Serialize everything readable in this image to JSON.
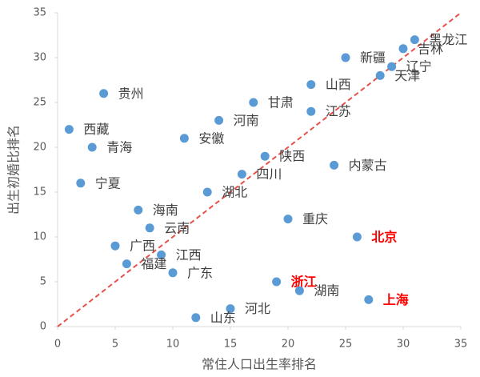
{
  "chart_data": {
    "type": "scatter",
    "x_label": "常住人口出生率排名",
    "y_label": "出生初婚比排名",
    "xlim": [
      0,
      35
    ],
    "ylim": [
      0,
      35
    ],
    "xticks": [
      0,
      5,
      10,
      15,
      20,
      25,
      30,
      35
    ],
    "yticks": [
      0,
      5,
      10,
      15,
      20,
      25,
      30,
      35
    ],
    "color": "#5b9bd5",
    "reference_line": {
      "color": "#e8504a",
      "style": "dashed"
    },
    "points": [
      {
        "name": "黑龙江",
        "x": 31,
        "y": 32,
        "label_color": "#404040"
      },
      {
        "name": "吉林",
        "x": 30,
        "y": 31,
        "label_color": "#404040"
      },
      {
        "name": "辽宁",
        "x": 29,
        "y": 29,
        "label_color": "#404040"
      },
      {
        "name": "天津",
        "x": 28,
        "y": 28,
        "label_color": "#404040"
      },
      {
        "name": "新疆",
        "x": 25,
        "y": 30,
        "label_color": "#404040"
      },
      {
        "name": "山西",
        "x": 22,
        "y": 27,
        "label_color": "#404040"
      },
      {
        "name": "江苏",
        "x": 22,
        "y": 24,
        "label_color": "#404040"
      },
      {
        "name": "甘肃",
        "x": 17,
        "y": 25,
        "label_color": "#404040"
      },
      {
        "name": "河南",
        "x": 14,
        "y": 23,
        "label_color": "#404040"
      },
      {
        "name": "贵州",
        "x": 4,
        "y": 26,
        "label_color": "#404040"
      },
      {
        "name": "西藏",
        "x": 1,
        "y": 22,
        "label_color": "#404040"
      },
      {
        "name": "青海",
        "x": 3,
        "y": 20,
        "label_color": "#404040"
      },
      {
        "name": "安徽",
        "x": 11,
        "y": 21,
        "label_color": "#404040"
      },
      {
        "name": "陕西",
        "x": 18,
        "y": 19,
        "label_color": "#404040"
      },
      {
        "name": "内蒙古",
        "x": 24,
        "y": 18,
        "label_color": "#404040"
      },
      {
        "name": "四川",
        "x": 16,
        "y": 17,
        "label_color": "#404040"
      },
      {
        "name": "宁夏",
        "x": 2,
        "y": 16,
        "label_color": "#404040"
      },
      {
        "name": "湖北",
        "x": 13,
        "y": 15,
        "label_color": "#404040"
      },
      {
        "name": "海南",
        "x": 7,
        "y": 13,
        "label_color": "#404040"
      },
      {
        "name": "云南",
        "x": 8,
        "y": 11,
        "label_color": "#404040"
      },
      {
        "name": "重庆",
        "x": 20,
        "y": 12,
        "label_color": "#404040"
      },
      {
        "name": "北京",
        "x": 26,
        "y": 10,
        "label_color": "#ff0000"
      },
      {
        "name": "广西",
        "x": 5,
        "y": 9,
        "label_color": "#404040"
      },
      {
        "name": "江西",
        "x": 9,
        "y": 8,
        "label_color": "#404040"
      },
      {
        "name": "福建",
        "x": 6,
        "y": 7,
        "label_color": "#404040"
      },
      {
        "name": "广东",
        "x": 10,
        "y": 6,
        "label_color": "#404040"
      },
      {
        "name": "浙江",
        "x": 19,
        "y": 5,
        "label_color": "#ff0000"
      },
      {
        "name": "湖南",
        "x": 21,
        "y": 4,
        "label_color": "#404040"
      },
      {
        "name": "上海",
        "x": 27,
        "y": 3,
        "label_color": "#ff0000"
      },
      {
        "name": "河北",
        "x": 15,
        "y": 2,
        "label_color": "#404040"
      },
      {
        "name": "山东",
        "x": 12,
        "y": 1,
        "label_color": "#404040"
      }
    ]
  }
}
